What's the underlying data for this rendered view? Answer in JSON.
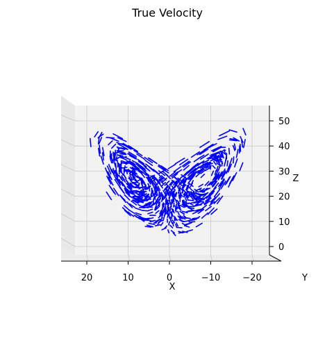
{
  "chart_data": {
    "type": "3d-quiver",
    "title": "True Velocity",
    "xlabel": "X",
    "ylabel": "Y",
    "zlabel": "Z",
    "x_ticks": [
      20,
      10,
      0,
      -10,
      -20
    ],
    "x_tick_labels": [
      "20",
      "10",
      "0",
      "−10",
      "−20"
    ],
    "z_ticks": [
      0,
      10,
      20,
      30,
      40,
      50
    ],
    "z_tick_labels": [
      "0",
      "10",
      "20",
      "30",
      "40",
      "50"
    ],
    "xlim": [
      26,
      -27
    ],
    "zlim": [
      -5,
      55
    ],
    "grid": true,
    "arrow_color": "#0000ff",
    "pane_color": "#f2f2f2",
    "grid_color": "#c8c8c8",
    "seed": 7,
    "n_arrows": 900,
    "attractor_hint": "Lorenz-like butterfly, two lobes centered near x=±8, z=27"
  }
}
